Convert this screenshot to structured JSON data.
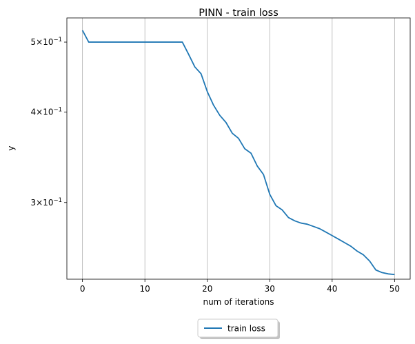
{
  "chart_data": {
    "type": "line",
    "title": "PINN - train loss",
    "xlabel": "num of iterations",
    "ylabel": "y",
    "yscale": "log",
    "grid": "vertical lines at x ticks",
    "legend_placement": "bottom-center, below plot",
    "xlim": [
      -2.5,
      52.5
    ],
    "ylim": [
      0.235,
      0.54
    ],
    "x_ticks": [
      0,
      10,
      20,
      30,
      40,
      50
    ],
    "x_tick_labels": [
      "0",
      "10",
      "20",
      "30",
      "40",
      "50"
    ],
    "y_ticks": [
      {
        "value": 0.5,
        "mantissa": "5",
        "base": "10",
        "exp": "−1"
      },
      {
        "value": 0.4,
        "mantissa": "4",
        "base": "10",
        "exp": "−1"
      },
      {
        "value": 0.3,
        "mantissa": "3",
        "base": "10",
        "exp": "−1"
      }
    ],
    "series": [
      {
        "name": "train loss",
        "color": "#1f77b4",
        "x": [
          0,
          1,
          2,
          3,
          4,
          5,
          6,
          7,
          8,
          9,
          10,
          11,
          12,
          13,
          14,
          15,
          16,
          17,
          18,
          19,
          20,
          21,
          22,
          23,
          24,
          25,
          26,
          27,
          28,
          29,
          30,
          31,
          32,
          33,
          34,
          35,
          36,
          37,
          38,
          39,
          40,
          41,
          42,
          43,
          44,
          45,
          46,
          47,
          48,
          49,
          50
        ],
        "y": [
          0.519,
          0.5,
          0.5,
          0.5,
          0.5,
          0.5,
          0.5,
          0.5,
          0.5,
          0.5,
          0.5,
          0.5,
          0.5,
          0.5,
          0.5,
          0.5,
          0.5,
          0.481,
          0.462,
          0.452,
          0.427,
          0.409,
          0.396,
          0.387,
          0.374,
          0.368,
          0.356,
          0.351,
          0.337,
          0.328,
          0.308,
          0.297,
          0.293,
          0.286,
          0.283,
          0.281,
          0.28,
          0.278,
          0.276,
          0.273,
          0.27,
          0.267,
          0.264,
          0.261,
          0.257,
          0.254,
          0.249,
          0.242,
          0.24,
          0.239,
          0.2385
        ]
      }
    ]
  }
}
